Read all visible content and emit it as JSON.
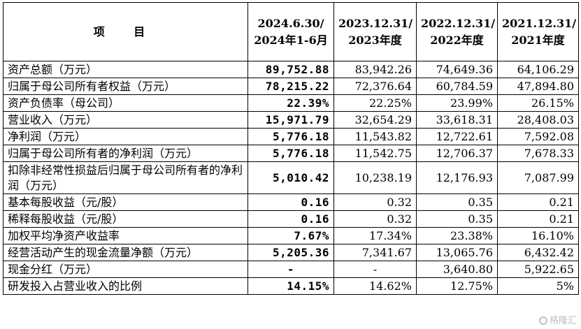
{
  "table": {
    "headers": [
      "项  目",
      "2024.6.30/ 2024年1-6月",
      "2023.12.31/ 2023年度",
      "2022.12.31/ 2022年度",
      "2021.12.31/ 2021年度"
    ],
    "rows": [
      {
        "label": "资产总额（万元）",
        "values": [
          "89,752.88",
          "83,942.26",
          "74,649.36",
          "64,106.29"
        ]
      },
      {
        "label": "归属于母公司所有者权益（万元）",
        "values": [
          "78,215.22",
          "72,376.64",
          "60,784.59",
          "47,894.80"
        ]
      },
      {
        "label": "资产负债率（母公司）",
        "values": [
          "22.39%",
          "22.25%",
          "23.99%",
          "26.15%"
        ]
      },
      {
        "label": "营业收入（万元）",
        "values": [
          "15,971.79",
          "32,654.29",
          "33,618.31",
          "28,408.03"
        ]
      },
      {
        "label": "净利润（万元）",
        "values": [
          "5,776.18",
          "11,543.82",
          "12,722.61",
          "7,592.08"
        ]
      },
      {
        "label": "归属于母公司所有者的净利润（万元）",
        "values": [
          "5,776.18",
          "11,542.75",
          "12,706.37",
          "7,678.33"
        ]
      },
      {
        "label": "扣除非经常性损益后归属于母公司所有者的净利润（万元）",
        "values": [
          "5,010.42",
          "10,238.19",
          "12,176.93",
          "7,087.99"
        ]
      },
      {
        "label": "基本每股收益（元/股）",
        "values": [
          "0.16",
          "0.32",
          "0.35",
          "0.21"
        ]
      },
      {
        "label": "稀释每股收益（元/股）",
        "values": [
          "0.16",
          "0.32",
          "0.35",
          "0.21"
        ]
      },
      {
        "label": "加权平均净资产收益率",
        "values": [
          "7.67%",
          "17.34%",
          "23.38%",
          "16.10%"
        ]
      },
      {
        "label": "经营活动产生的现金流量净额（万元）",
        "values": [
          "5,205.36",
          "7,341.67",
          "13,065.76",
          "6,432.42"
        ]
      },
      {
        "label": "现金分红（万元）",
        "values": [
          "-",
          "-",
          "3,640.80",
          "5,922.65"
        ]
      },
      {
        "label": "研发投入占营业收入的比例",
        "values": [
          "14.15%",
          "14.62%",
          "12.75%",
          "5%"
        ]
      }
    ]
  },
  "watermark": {
    "text": "格隆汇"
  }
}
